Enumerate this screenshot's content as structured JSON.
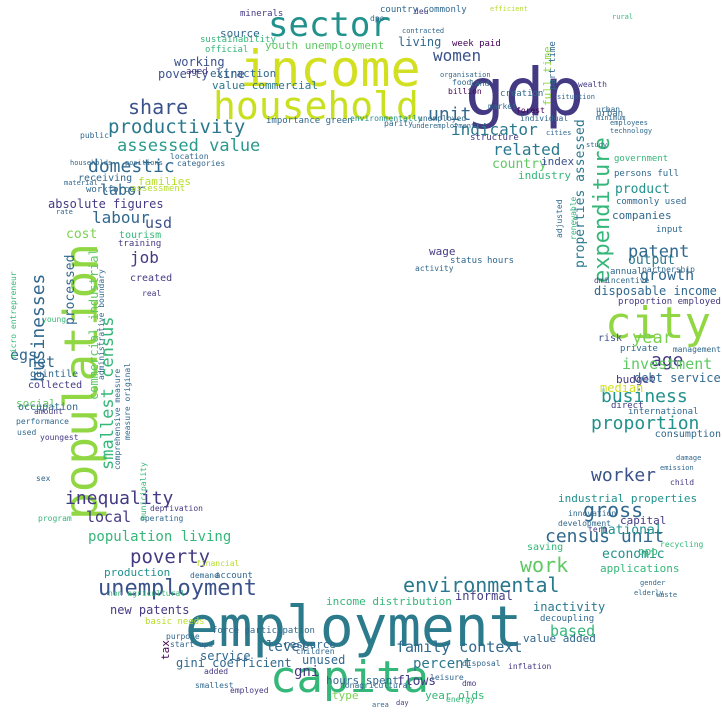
{
  "colors": {
    "background": "#ffffff",
    "palette": [
      "#440154",
      "#443a83",
      "#31688e",
      "#21918c",
      "#35b779",
      "#90d743",
      "#d3e021",
      "#fde725",
      "#2b8a8c"
    ]
  },
  "words": [
    {
      "text": "employment",
      "color": "#2b7b8c"
    },
    {
      "text": "income",
      "color": "#d3e021"
    },
    {
      "text": "gdp",
      "color": "#443a83"
    },
    {
      "text": "population",
      "color": "#90d743"
    },
    {
      "text": "capita",
      "color": "#35b779"
    },
    {
      "text": "household",
      "color": "#c9e020"
    },
    {
      "text": "sector",
      "color": "#21918c"
    },
    {
      "text": "city",
      "color": "#90d743"
    },
    {
      "text": "share",
      "color": "#3b518b"
    },
    {
      "text": "productivity",
      "color": "#2a788e"
    },
    {
      "text": "assessed value",
      "color": "#2a9a8c"
    },
    {
      "text": "domestic",
      "color": "#31688e"
    },
    {
      "text": "unemployment",
      "color": "#3b518b"
    },
    {
      "text": "environmental",
      "color": "#2a788e"
    },
    {
      "text": "expenditure",
      "color": "#35b779"
    },
    {
      "text": "poverty",
      "color": "#443a83"
    },
    {
      "text": "inequality",
      "color": "#443a83"
    },
    {
      "text": "businesses",
      "color": "#31688e"
    },
    {
      "text": "smallest census",
      "color": "#35b779"
    },
    {
      "text": "work",
      "color": "#5ec962"
    },
    {
      "text": "gross",
      "color": "#31688e"
    },
    {
      "text": "proportion",
      "color": "#21918c"
    },
    {
      "text": "business",
      "color": "#21918c"
    },
    {
      "text": "worker",
      "color": "#3b528b"
    },
    {
      "text": "unit",
      "color": "#31688e"
    },
    {
      "text": "census unit",
      "color": "#31688e"
    },
    {
      "text": "indicator",
      "color": "#2a788e"
    },
    {
      "text": "women",
      "color": "#3b528b"
    },
    {
      "text": "related",
      "color": "#2a788e"
    },
    {
      "text": "patent",
      "color": "#31688e"
    },
    {
      "text": "year",
      "color": "#7ad151"
    },
    {
      "text": "age",
      "color": "#443a83"
    },
    {
      "text": "investment",
      "color": "#5ec962"
    },
    {
      "text": "growth",
      "color": "#31688e"
    },
    {
      "text": "output",
      "color": "#2a788e"
    },
    {
      "text": "family context",
      "color": "#31688e"
    },
    {
      "text": "percent",
      "color": "#2a788e"
    },
    {
      "text": "based",
      "color": "#35b779"
    },
    {
      "text": "local",
      "color": "#443a83"
    },
    {
      "text": "labor",
      "color": "#31688e"
    },
    {
      "text": "labour",
      "color": "#31688e"
    },
    {
      "text": "job",
      "color": "#443a83"
    },
    {
      "text": "usd",
      "color": "#3b528b"
    },
    {
      "text": "net",
      "color": "#31688e"
    },
    {
      "text": "egs",
      "color": "#31688e"
    },
    {
      "text": "cost",
      "color": "#7ad151"
    },
    {
      "text": "population living",
      "color": "#35b779"
    },
    {
      "text": "level",
      "color": "#31688e"
    },
    {
      "text": "gni",
      "color": "#443a83"
    },
    {
      "text": "median",
      "color": "#d3e021"
    },
    {
      "text": "national",
      "color": "#21918c"
    },
    {
      "text": "economic",
      "color": "#21918c"
    },
    {
      "text": "country",
      "color": "#5ec962"
    },
    {
      "text": "poverty line",
      "color": "#3b528b"
    },
    {
      "text": "working",
      "color": "#3b528b"
    },
    {
      "text": "living",
      "color": "#31688e"
    },
    {
      "text": "source",
      "color": "#31688e"
    },
    {
      "text": "youth unemployment",
      "color": "#5ec962"
    },
    {
      "text": "value commercial",
      "color": "#2a788e"
    },
    {
      "text": "absolute figures",
      "color": "#443a83"
    },
    {
      "text": "properties assessed",
      "color": "#2a788e"
    },
    {
      "text": "commercial industrial",
      "color": "#5ec962"
    },
    {
      "text": "processed",
      "color": "#31688e"
    },
    {
      "text": "disposable income",
      "color": "#31688e"
    },
    {
      "text": "debt service",
      "color": "#31688e"
    },
    {
      "text": "new patents",
      "color": "#443a83"
    },
    {
      "text": "service",
      "color": "#31688e"
    },
    {
      "text": "gini coefficient",
      "color": "#31688e"
    },
    {
      "text": "production",
      "color": "#21918c"
    },
    {
      "text": "income distribution",
      "color": "#35b779"
    },
    {
      "text": "unused",
      "color": "#31688e"
    },
    {
      "text": "resource",
      "color": "#31688e"
    },
    {
      "text": "flows",
      "color": "#443a83"
    },
    {
      "text": "informal",
      "color": "#443a83"
    },
    {
      "text": "inactivity",
      "color": "#2a788e"
    },
    {
      "text": "industry",
      "color": "#35b779"
    },
    {
      "text": "index",
      "color": "#3b528b"
    },
    {
      "text": "product",
      "color": "#21918c"
    },
    {
      "text": "companies",
      "color": "#31688e"
    },
    {
      "text": "wage",
      "color": "#443a83"
    },
    {
      "text": "ppp",
      "color": "#35b779"
    },
    {
      "text": "budget",
      "color": "#443a83"
    },
    {
      "text": "social",
      "color": "#5ec962"
    },
    {
      "text": "type",
      "color": "#7ad151"
    },
    {
      "text": "full time",
      "color": "#90d743"
    },
    {
      "text": "families",
      "color": "#b5de2b"
    },
    {
      "text": "extraction",
      "color": "#31688e"
    },
    {
      "text": "aged",
      "color": "#443a83"
    },
    {
      "text": "tax",
      "color": "#440154"
    },
    {
      "text": "hours spent",
      "color": "#31688e"
    },
    {
      "text": "year olds",
      "color": "#35b779"
    },
    {
      "text": "value added",
      "color": "#31688e"
    },
    {
      "text": "applications",
      "color": "#35b779"
    },
    {
      "text": "industrial properties",
      "color": "#21918c"
    },
    {
      "text": "consumption",
      "color": "#31688e"
    },
    {
      "text": "capital",
      "color": "#443a83"
    },
    {
      "text": "risk",
      "color": "#3b528b"
    },
    {
      "text": "annual",
      "color": "#31688e"
    },
    {
      "text": "input",
      "color": "#31688e"
    },
    {
      "text": "commonly used",
      "color": "#31688e"
    },
    {
      "text": "persons full",
      "color": "#31688e"
    },
    {
      "text": "urban",
      "color": "#31688e"
    },
    {
      "text": "government",
      "color": "#35b779"
    },
    {
      "text": "created",
      "color": "#443a83"
    },
    {
      "text": "collected",
      "color": "#443a83"
    },
    {
      "text": "quintile",
      "color": "#31688e"
    },
    {
      "text": "occupation",
      "color": "#31688e"
    },
    {
      "text": "tourism",
      "color": "#35b779"
    },
    {
      "text": "training",
      "color": "#443a83"
    },
    {
      "text": "receiving",
      "color": "#31688e"
    },
    {
      "text": "workforce",
      "color": "#31688e"
    },
    {
      "text": "assessment",
      "color": "#b5de2b"
    },
    {
      "text": "importance green",
      "color": "#31688e"
    },
    {
      "text": "environmentally",
      "color": "#21918c"
    },
    {
      "text": "minerals",
      "color": "#443a83"
    },
    {
      "text": "week paid",
      "color": "#440154"
    },
    {
      "text": "country commonly",
      "color": "#31688e"
    },
    {
      "text": "sustainability",
      "color": "#35b779"
    },
    {
      "text": "added",
      "color": "#443a83"
    },
    {
      "text": "account",
      "color": "#31688e"
    },
    {
      "text": "demand",
      "color": "#31688e"
    },
    {
      "text": "basic needs",
      "color": "#b5de2b"
    },
    {
      "text": "start ups",
      "color": "#31688e"
    },
    {
      "text": "smallest",
      "color": "#31688e"
    },
    {
      "text": "employed",
      "color": "#443a83"
    },
    {
      "text": "children",
      "color": "#31688e"
    },
    {
      "text": "force participation",
      "color": "#31688e"
    },
    {
      "text": "purpose",
      "color": "#31688e"
    },
    {
      "text": "non agricultural",
      "color": "#35b779"
    },
    {
      "text": "saving",
      "color": "#35b779"
    },
    {
      "text": "development",
      "color": "#31688e"
    },
    {
      "text": "innovation",
      "color": "#31688e"
    },
    {
      "text": "inflation",
      "color": "#443a83"
    },
    {
      "text": "decoupling",
      "color": "#31688e"
    },
    {
      "text": "term",
      "color": "#443a83"
    },
    {
      "text": "urban",
      "color": "#31688e"
    },
    {
      "text": "private",
      "color": "#31688e"
    },
    {
      "text": "management",
      "color": "#31688e"
    },
    {
      "text": "proportion employed",
      "color": "#443a83"
    },
    {
      "text": "partnership",
      "color": "#31688e"
    },
    {
      "text": "international",
      "color": "#31688e"
    },
    {
      "text": "direct",
      "color": "#443a83"
    },
    {
      "text": "child",
      "color": "#443a83"
    },
    {
      "text": "structure",
      "color": "#443a83"
    },
    {
      "text": "creation",
      "color": "#31688e"
    },
    {
      "text": "status",
      "color": "#31688e"
    },
    {
      "text": "hours",
      "color": "#31688e"
    },
    {
      "text": "activity",
      "color": "#31688e"
    },
    {
      "text": "market",
      "color": "#31688e"
    },
    {
      "text": "part time",
      "color": "#31688e"
    },
    {
      "text": "micro entrepreneur",
      "color": "#35b779"
    },
    {
      "text": "administrative boundary",
      "color": "#31688e"
    },
    {
      "text": "comprehensive measure",
      "color": "#31688e"
    },
    {
      "text": "measure original",
      "color": "#31688e"
    },
    {
      "text": "municipality",
      "color": "#35b779"
    },
    {
      "text": "performance",
      "color": "#31688e"
    },
    {
      "text": "amount",
      "color": "#443a83"
    },
    {
      "text": "used",
      "color": "#31688e"
    },
    {
      "text": "youngest",
      "color": "#443a83"
    },
    {
      "text": "sex",
      "color": "#31688e"
    },
    {
      "text": "program",
      "color": "#35b779"
    },
    {
      "text": "deprivation",
      "color": "#443a83"
    },
    {
      "text": "operating",
      "color": "#31688e"
    },
    {
      "text": "financial",
      "color": "#b5de2b"
    },
    {
      "text": "recycling",
      "color": "#35b779"
    },
    {
      "text": "deu",
      "color": "#443a83"
    },
    {
      "text": "dpo",
      "color": "#31688e"
    },
    {
      "text": "official",
      "color": "#35b779"
    },
    {
      "text": "location",
      "color": "#31688e"
    },
    {
      "text": "categories",
      "color": "#31688e"
    },
    {
      "text": "billion",
      "color": "#440154"
    },
    {
      "text": "forest",
      "color": "#440154"
    },
    {
      "text": "disposal",
      "color": "#31688e"
    },
    {
      "text": "nonagricultural",
      "color": "#31688e"
    },
    {
      "text": "dmo",
      "color": "#443a83"
    },
    {
      "text": "leisure",
      "color": "#31688e"
    },
    {
      "text": "real",
      "color": "#443a83"
    },
    {
      "text": "young",
      "color": "#35b779"
    },
    {
      "text": "incentive",
      "color": "#31688e"
    },
    {
      "text": "dmi",
      "color": "#443a83"
    },
    {
      "text": "adjusted",
      "color": "#31688e"
    },
    {
      "text": "renewable",
      "color": "#35b779"
    },
    {
      "text": "individual",
      "color": "#31688e"
    },
    {
      "text": "unemployed",
      "color": "#31688e"
    },
    {
      "text": "underemployment",
      "color": "#31688e"
    },
    {
      "text": "food",
      "color": "#31688e"
    },
    {
      "text": "land",
      "color": "#31688e"
    },
    {
      "text": "parity",
      "color": "#31688e"
    },
    {
      "text": "public",
      "color": "#31688e"
    },
    {
      "text": "wealth",
      "color": "#443a83"
    },
    {
      "text": "minimum",
      "color": "#31688e"
    },
    {
      "text": "technology",
      "color": "#31688e"
    },
    {
      "text": "employees",
      "color": "#31688e"
    },
    {
      "text": "households",
      "color": "#31688e"
    },
    {
      "text": "positions",
      "color": "#31688e"
    },
    {
      "text": "material",
      "color": "#31688e"
    },
    {
      "text": "rate",
      "color": "#31688e"
    },
    {
      "text": "cities",
      "color": "#31688e"
    },
    {
      "text": "study",
      "color": "#31688e"
    },
    {
      "text": "rural",
      "color": "#35b779"
    },
    {
      "text": "efficient",
      "color": "#b5de2b"
    },
    {
      "text": "contracted",
      "color": "#31688e"
    },
    {
      "text": "organisation",
      "color": "#31688e"
    },
    {
      "text": "situation",
      "color": "#31688e"
    },
    {
      "text": "damage",
      "color": "#31688e"
    },
    {
      "text": "emission",
      "color": "#31688e"
    },
    {
      "text": "gender",
      "color": "#31688e"
    },
    {
      "text": "elderly",
      "color": "#31688e"
    },
    {
      "text": "waste",
      "color": "#31688e"
    },
    {
      "text": "energy",
      "color": "#35b779"
    },
    {
      "text": "day",
      "color": "#443a83"
    },
    {
      "text": "area",
      "color": "#31688e"
    },
    {
      "text": "edu",
      "color": "#443a83"
    }
  ]
}
